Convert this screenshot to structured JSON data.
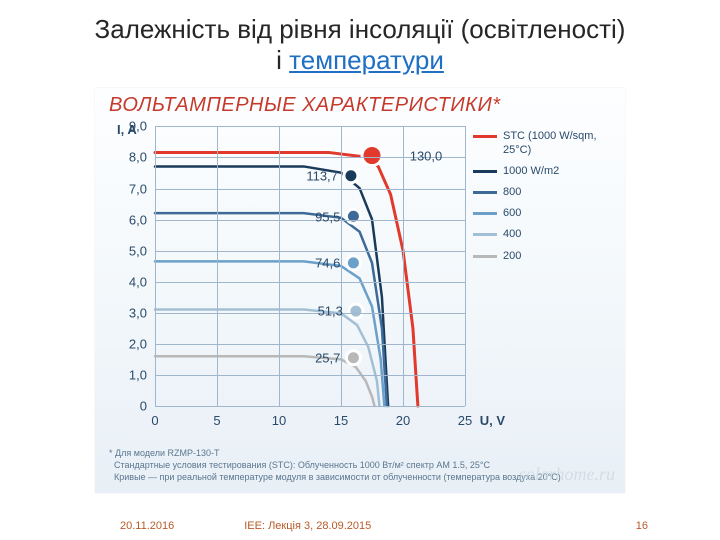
{
  "title": {
    "line1": "Залежність від рівня інсоляції (освітленості)",
    "i_word": "і ",
    "link_word": "температури",
    "fontsize": 26
  },
  "chart": {
    "heading": "ВОЛЬТАМПЕРНЫЕ ХАРАКТЕРИСТИКИ",
    "heading_ast": "*",
    "heading_fontsize": 20,
    "background_gradient": [
      "#fdfeff",
      "#e8eff6"
    ],
    "axes": {
      "x_title": "U, V",
      "y_title": "I, A",
      "xlim": [
        0,
        25
      ],
      "ylim": [
        0,
        9
      ],
      "xticks": [
        0,
        5,
        10,
        15,
        20,
        25
      ],
      "yticks": [
        0,
        1.0,
        2.0,
        3.0,
        4.0,
        5.0,
        6.0,
        7.0,
        8.0,
        9.0
      ],
      "ytick_labels": [
        "0",
        "1,0",
        "2,0",
        "3,0",
        "4,0",
        "5,0",
        "6,0",
        "7,0",
        "8,0",
        "9,0"
      ],
      "grid_color": "#9fb6cc",
      "label_fontsize": 13,
      "label_color": "#2a4a6a"
    },
    "series": [
      {
        "id": "stc",
        "label": "STC (1000 W/sqm, 25°C)",
        "color": "#e13a2d",
        "width": 3,
        "points": [
          [
            0,
            8.15
          ],
          [
            14,
            8.15
          ],
          [
            17,
            8.0
          ],
          [
            18,
            7.7
          ],
          [
            19,
            6.8
          ],
          [
            20,
            5.0
          ],
          [
            20.8,
            2.5
          ],
          [
            21.2,
            0
          ]
        ],
        "marker": {
          "x": 17.5,
          "y": 8.05,
          "label": "130,0",
          "big": true
        }
      },
      {
        "id": "w1000",
        "label": "1000 W/m2",
        "color": "#1a3a5c",
        "width": 2.5,
        "points": [
          [
            0,
            7.7
          ],
          [
            12,
            7.7
          ],
          [
            15,
            7.5
          ],
          [
            16.5,
            7.0
          ],
          [
            17.5,
            6.0
          ],
          [
            18.3,
            3.5
          ],
          [
            18.8,
            0
          ]
        ],
        "marker": {
          "x": 15.8,
          "y": 7.4,
          "label": "113,7"
        }
      },
      {
        "id": "w800",
        "label": "800",
        "color": "#3d6a97",
        "width": 2.5,
        "points": [
          [
            0,
            6.2
          ],
          [
            12,
            6.2
          ],
          [
            15,
            6.05
          ],
          [
            16.5,
            5.6
          ],
          [
            17.5,
            4.6
          ],
          [
            18.3,
            2.5
          ],
          [
            18.7,
            0
          ]
        ],
        "marker": {
          "x": 16.0,
          "y": 6.1,
          "label": "95,5"
        }
      },
      {
        "id": "w600",
        "label": "600",
        "color": "#6aa0c9",
        "width": 2.5,
        "points": [
          [
            0,
            4.65
          ],
          [
            12,
            4.65
          ],
          [
            15,
            4.5
          ],
          [
            16.5,
            4.1
          ],
          [
            17.5,
            3.2
          ],
          [
            18.2,
            1.5
          ],
          [
            18.5,
            0
          ]
        ],
        "marker": {
          "x": 16.0,
          "y": 4.6,
          "label": "74,6"
        }
      },
      {
        "id": "w400",
        "label": "400",
        "color": "#a3bfd4",
        "width": 2.5,
        "points": [
          [
            0,
            3.1
          ],
          [
            12,
            3.1
          ],
          [
            15,
            2.98
          ],
          [
            16.3,
            2.6
          ],
          [
            17.2,
            1.9
          ],
          [
            17.9,
            0.8
          ],
          [
            18.1,
            0
          ]
        ],
        "marker": {
          "x": 16.2,
          "y": 3.05,
          "label": "51,3"
        }
      },
      {
        "id": "w200",
        "label": "200",
        "color": "#b8b8b8",
        "width": 2.5,
        "points": [
          [
            0,
            1.6
          ],
          [
            12,
            1.6
          ],
          [
            15,
            1.5
          ],
          [
            16.2,
            1.25
          ],
          [
            17.0,
            0.8
          ],
          [
            17.5,
            0.3
          ],
          [
            17.7,
            0
          ]
        ],
        "marker": {
          "x": 16.0,
          "y": 1.55,
          "label": "25,7"
        }
      }
    ],
    "marker_style": {
      "radius": 7,
      "big_radius": 10,
      "stroke": "#ffffff",
      "stroke_width": 3
    },
    "footnote": {
      "star": "*",
      "l1": "Для модели RZMP-130-T",
      "l2": "Стандартные условия тестирования (STC): Облученность 1000 Вт/м² спектр AM 1.5, 25°C",
      "l3": "Кривые — при реальной температуре модуля в зависимости от облученности (температура воздуха 20°C)",
      "fontsize": 9,
      "color": "#5b7690"
    },
    "watermark": "solarhome.ru"
  },
  "footer": {
    "date": "20.11.2016",
    "lecture": "ІЕЕ: Лекція 3, 28.09.2015",
    "page": "16",
    "color": "#b85a28",
    "fontsize": 11
  }
}
